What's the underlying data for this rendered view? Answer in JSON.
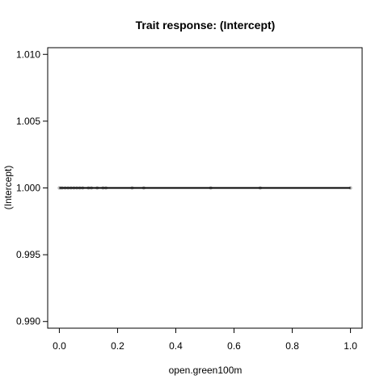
{
  "chart_data": {
    "type": "scatter",
    "title": "Trait response: (Intercept)",
    "xlabel": "open.green100m",
    "ylabel": "(Intercept)",
    "xlim": [
      -0.04,
      1.04
    ],
    "ylim": [
      0.9895,
      1.0105
    ],
    "x_ticks": [
      0.0,
      0.2,
      0.4,
      0.6,
      0.8,
      1.0
    ],
    "x_tick_labels": [
      "0.0",
      "0.2",
      "0.4",
      "0.6",
      "0.8",
      "1.0"
    ],
    "y_ticks": [
      0.99,
      0.995,
      1.0,
      1.005,
      1.01
    ],
    "y_tick_labels": [
      "0.990",
      "0.995",
      "1.000",
      "1.005",
      "1.010"
    ],
    "grid": false,
    "points": {
      "color": "#bfbfbf",
      "x": [
        0.0,
        0.005,
        0.01,
        0.02,
        0.03,
        0.04,
        0.05,
        0.06,
        0.07,
        0.08,
        0.1,
        0.11,
        0.13,
        0.15,
        0.16,
        0.25,
        0.29,
        0.52,
        0.69,
        1.0
      ],
      "y": [
        1.0,
        1.0,
        1.0,
        1.0,
        1.0,
        1.0,
        1.0,
        1.0,
        1.0,
        1.0,
        1.0,
        1.0,
        1.0,
        1.0,
        1.0,
        1.0,
        1.0,
        1.0,
        1.0,
        1.0
      ]
    },
    "fit_line": {
      "color": "#000000",
      "x": [
        0.0,
        1.0
      ],
      "y": [
        1.0,
        1.0
      ]
    }
  }
}
